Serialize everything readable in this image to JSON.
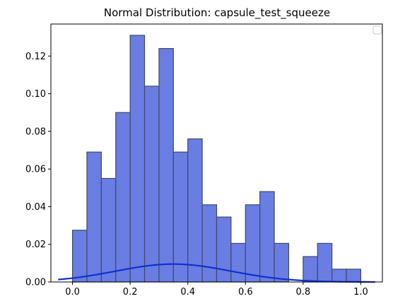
{
  "chart_data": {
    "type": "bar",
    "title": "Normal Distribution: capsule_test_squeeze",
    "xlabel": "",
    "ylabel": "",
    "xlim": [
      -0.075,
      1.075
    ],
    "ylim": [
      0,
      0.137
    ],
    "x_ticks": [
      0.0,
      0.2,
      0.4,
      0.6,
      0.8,
      1.0
    ],
    "x_tick_labels": [
      "0.0",
      "0.2",
      "0.4",
      "0.6",
      "0.8",
      "1.0"
    ],
    "y_ticks": [
      0.0,
      0.02,
      0.04,
      0.06,
      0.08,
      0.1,
      0.12
    ],
    "y_tick_labels": [
      "0.00",
      "0.02",
      "0.04",
      "0.06",
      "0.08",
      "0.10",
      "0.12"
    ],
    "grid": false,
    "legend": "top-right, empty",
    "bin_edges": [
      0.0,
      0.05,
      0.1,
      0.15,
      0.2,
      0.25,
      0.3,
      0.35,
      0.4,
      0.45,
      0.5,
      0.55,
      0.6,
      0.65,
      0.7,
      0.75,
      0.8,
      0.85,
      0.9,
      0.95,
      1.0
    ],
    "values": [
      0.0275,
      0.069,
      0.055,
      0.09,
      0.131,
      0.104,
      0.124,
      0.069,
      0.076,
      0.041,
      0.0345,
      0.0205,
      0.041,
      0.048,
      0.0205,
      0.0,
      0.0135,
      0.0205,
      0.0068,
      0.0068
    ],
    "curve": {
      "type": "normal_pdf",
      "mean": 0.35,
      "std": 0.2,
      "scale": 0.0095,
      "x_range": [
        -0.05,
        1.05
      ]
    },
    "colors": {
      "bar_fill": "#6a7de3",
      "bar_edge": "#3f4a66",
      "curve": "#1030d0",
      "axis": "#000000"
    }
  }
}
